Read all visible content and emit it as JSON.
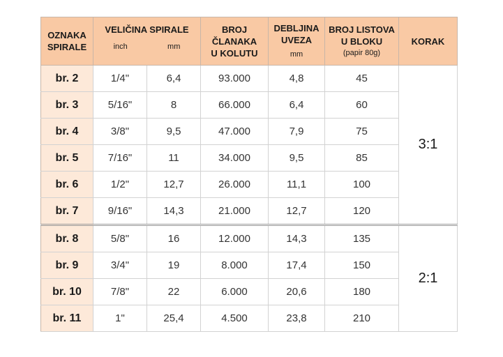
{
  "headers": {
    "oznaka_line1": "OZNAKA",
    "oznaka_line2": "SPIRALE",
    "velicina": "VELIČINA SPIRALE",
    "inch": "inch",
    "mm": "mm",
    "broj_line1": "BROJ",
    "broj_line2": "ČLANAKA",
    "broj_line3": "U KOLUTU",
    "debljina_line1": "DEBLJINA",
    "debljina_line2": "UVEZA",
    "debljina_unit": "mm",
    "listova_line1": "BROJ LISTOVA",
    "listova_line2": "U BLOKU",
    "listova_unit": "(papir 80g)",
    "korak": "KORAK"
  },
  "rows": [
    {
      "code": "br. 2",
      "inch": "1/4\"",
      "mm": "6,4",
      "links": "93.000",
      "thickness": "4,8",
      "sheets": "45"
    },
    {
      "code": "br. 3",
      "inch": "5/16\"",
      "mm": "8",
      "links": "66.000",
      "thickness": "6,4",
      "sheets": "60"
    },
    {
      "code": "br. 4",
      "inch": "3/8\"",
      "mm": "9,5",
      "links": "47.000",
      "thickness": "7,9",
      "sheets": "75"
    },
    {
      "code": "br. 5",
      "inch": "7/16\"",
      "mm": "11",
      "links": "34.000",
      "thickness": "9,5",
      "sheets": "85"
    },
    {
      "code": "br. 6",
      "inch": "1/2\"",
      "mm": "12,7",
      "links": "26.000",
      "thickness": "11,1",
      "sheets": "100"
    },
    {
      "code": "br. 7",
      "inch": "9/16\"",
      "mm": "14,3",
      "links": "21.000",
      "thickness": "12,7",
      "sheets": "120"
    },
    {
      "code": "br. 8",
      "inch": "5/8\"",
      "mm": "16",
      "links": "12.000",
      "thickness": "14,3",
      "sheets": "135"
    },
    {
      "code": "br. 9",
      "inch": "3/4\"",
      "mm": "19",
      "links": "8.000",
      "thickness": "17,4",
      "sheets": "150"
    },
    {
      "code": "br. 10",
      "inch": "7/8\"",
      "mm": "22",
      "links": "6.000",
      "thickness": "20,6",
      "sheets": "180"
    },
    {
      "code": "br. 11",
      "inch": "1\"",
      "mm": "25,4",
      "links": "4.500",
      "thickness": "23,8",
      "sheets": "210"
    }
  ],
  "pitch_groups": [
    {
      "label": "3:1"
    },
    {
      "label": "2:1"
    }
  ],
  "colors": {
    "header_bg": "#f9c9a4",
    "code_bg": "#fde9d9"
  }
}
